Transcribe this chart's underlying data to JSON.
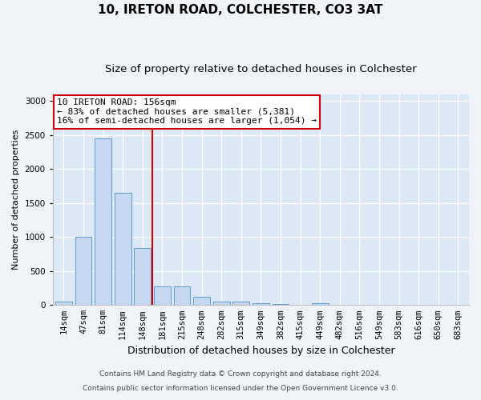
{
  "title": "10, IRETON ROAD, COLCHESTER, CO3 3AT",
  "subtitle": "Size of property relative to detached houses in Colchester",
  "xlabel": "Distribution of detached houses by size in Colchester",
  "ylabel": "Number of detached properties",
  "categories": [
    "14sqm",
    "47sqm",
    "81sqm",
    "114sqm",
    "148sqm",
    "181sqm",
    "215sqm",
    "248sqm",
    "282sqm",
    "315sqm",
    "349sqm",
    "382sqm",
    "415sqm",
    "449sqm",
    "482sqm",
    "516sqm",
    "549sqm",
    "583sqm",
    "616sqm",
    "650sqm",
    "683sqm"
  ],
  "values": [
    50,
    1000,
    2450,
    1650,
    840,
    280,
    280,
    120,
    50,
    50,
    30,
    20,
    0,
    25,
    0,
    0,
    0,
    0,
    0,
    0,
    0
  ],
  "bar_color": "#c6d9f1",
  "bar_edge_color": "#5b9bd5",
  "vline_x_index": 4.5,
  "vline_color": "#cc0000",
  "annotation_text": "10 IRETON ROAD: 156sqm\n← 83% of detached houses are smaller (5,381)\n16% of semi-detached houses are larger (1,054) →",
  "annotation_box_color": "#ffffff",
  "annotation_box_edge_color": "#cc0000",
  "ylim": [
    0,
    3100
  ],
  "yticks": [
    0,
    500,
    1000,
    1500,
    2000,
    2500,
    3000
  ],
  "bg_color": "#dce9f5",
  "fig_bg_color": "#f0f4f8",
  "footer_line1": "Contains HM Land Registry data © Crown copyright and database right 2024.",
  "footer_line2": "Contains public sector information licensed under the Open Government Licence v3.0.",
  "title_fontsize": 11,
  "subtitle_fontsize": 9.5,
  "xlabel_fontsize": 9,
  "ylabel_fontsize": 8,
  "tick_fontsize": 7.5,
  "footer_fontsize": 6.5,
  "annotation_fontsize": 8
}
